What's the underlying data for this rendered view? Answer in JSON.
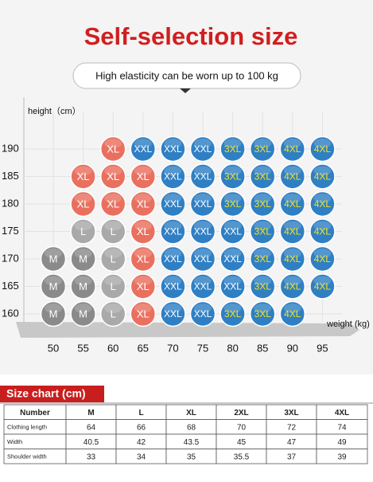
{
  "header": {
    "title": "Self-selection size",
    "subtitle": "High elasticity can be worn up to 100 kg"
  },
  "chart": {
    "y_label": "height（cm）",
    "x_label": "weight (kg)",
    "heights": [
      190,
      185,
      180,
      175,
      170,
      165,
      160
    ],
    "weights": [
      50,
      55,
      60,
      65,
      70,
      75,
      80,
      85,
      90,
      95
    ],
    "sizes": [
      {
        "name": "M",
        "color": "#8a8a8a",
        "text_color": "#ffffff"
      },
      {
        "name": "L",
        "color": "#a9a9a9",
        "text_color": "#ffffff"
      },
      {
        "name": "XL",
        "color": "#e9705f",
        "text_color": "#ffffff"
      },
      {
        "name": "XXL",
        "color": "#2f7fc4",
        "text_color": "#ffffff"
      },
      {
        "name": "3XL",
        "color": "#2f7fc4",
        "text_color": "#f2e21c"
      },
      {
        "name": "4XL",
        "color": "#2f7fc4",
        "text_color": "#f2e21c"
      }
    ],
    "cells": [
      [
        null,
        null,
        "XL",
        "XXL",
        "XXL",
        "XXL",
        "3XL",
        "3XL",
        "4XL",
        "4XL"
      ],
      [
        null,
        "XL",
        "XL",
        "XL",
        "XXL",
        "XXL",
        "3XL",
        "3XL",
        "4XL",
        "4XL"
      ],
      [
        null,
        "XL",
        "XL",
        "XL",
        "XXL",
        "XXL",
        "3XL",
        "3XL",
        "4XL",
        "4XL"
      ],
      [
        null,
        "L",
        "L",
        "XL",
        "XXL",
        "XXL",
        "XXL",
        "3XL",
        "4XL",
        "4XL"
      ],
      [
        "M",
        "M",
        "L",
        "XL",
        "XXL",
        "XXL",
        "XXL",
        "3XL",
        "4XL",
        "4XL"
      ],
      [
        "M",
        "M",
        "L",
        "XL",
        "XXL",
        "XXL",
        "XXL",
        "3XL",
        "4XL",
        "4XL"
      ],
      [
        "M",
        "M",
        "L",
        "XL",
        "XXL",
        "XXL",
        "3XL",
        "3XL",
        "4XL",
        null
      ]
    ]
  },
  "table": {
    "title": "Size chart (cm)",
    "header": [
      "Number",
      "M",
      "L",
      "XL",
      "2XL",
      "3XL",
      "4XL"
    ],
    "rows": [
      [
        "Clothing length",
        64,
        66,
        68,
        70,
        72,
        74
      ],
      [
        "Width",
        40.5,
        42,
        43.5,
        45,
        47,
        49
      ],
      [
        "Shoulder width",
        33,
        34,
        35,
        35.5,
        37,
        39
      ]
    ]
  }
}
